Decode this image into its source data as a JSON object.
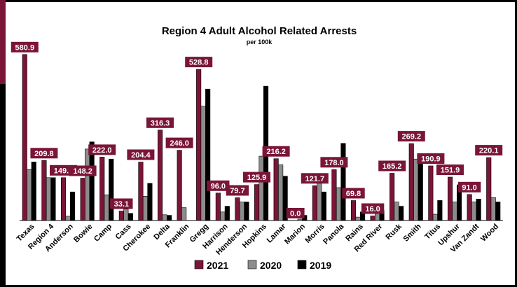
{
  "chart_data": {
    "type": "bar",
    "title": "Region 4 Adult Alcohol Related Arrests",
    "subtitle": "per 100k",
    "xlabel": "",
    "ylabel": "",
    "ylim": [
      0,
      600
    ],
    "grid": false,
    "legend_position": "bottom",
    "categories": [
      "Texas",
      "Region 4",
      "Anderson",
      "Bowie",
      "Camp",
      "Cass",
      "Cherokee",
      "Delta",
      "Franklin",
      "Gregg",
      "Harrison",
      "Henderson",
      "Hopkins",
      "Lamar",
      "Marion",
      "Morris",
      "Panola",
      "Rains",
      "Red River",
      "Rusk",
      "Smith",
      "Titus",
      "Upshur",
      "Van Zandt",
      "Wood"
    ],
    "series": [
      {
        "name": "2021",
        "color": "#7a1538",
        "labeled": true,
        "values": [
          580.9,
          209.8,
          149.8,
          148.2,
          222.0,
          33.1,
          204.4,
          316.3,
          246.0,
          528.8,
          96.0,
          79.7,
          125.9,
          216.2,
          0.0,
          121.7,
          178.0,
          69.8,
          16.0,
          165.2,
          269.2,
          190.9,
          151.9,
          91.0,
          220.1
        ],
        "labels": [
          "580.9",
          "209.8",
          "149.8",
          "148.2",
          "222.0",
          "33.1",
          "204.4",
          "316.3",
          "246.0",
          "528.8",
          "96.0",
          "79.7",
          "125.9",
          "216.2",
          "0.0",
          "121.7",
          "178.0",
          "69.8",
          "16.0",
          "165.2",
          "269.2",
          "190.9",
          "151.9",
          "91.0",
          "220.1"
        ]
      },
      {
        "name": "2020",
        "color": "#8c8c8c",
        "labeled": false,
        "values": [
          178,
          150,
          15,
          250,
          90,
          40,
          85,
          20,
          45,
          400,
          30,
          65,
          225,
          195,
          5,
          130,
          115,
          12,
          25,
          65,
          215,
          22,
          65,
          65,
          80
        ]
      },
      {
        "name": "2019",
        "color": "#000000",
        "labeled": false,
        "values": [
          205,
          150,
          100,
          275,
          215,
          25,
          130,
          18,
          0,
          460,
          50,
          65,
          470,
          155,
          18,
          100,
          270,
          30,
          35,
          50,
          215,
          70,
          125,
          75,
          65
        ]
      }
    ]
  }
}
